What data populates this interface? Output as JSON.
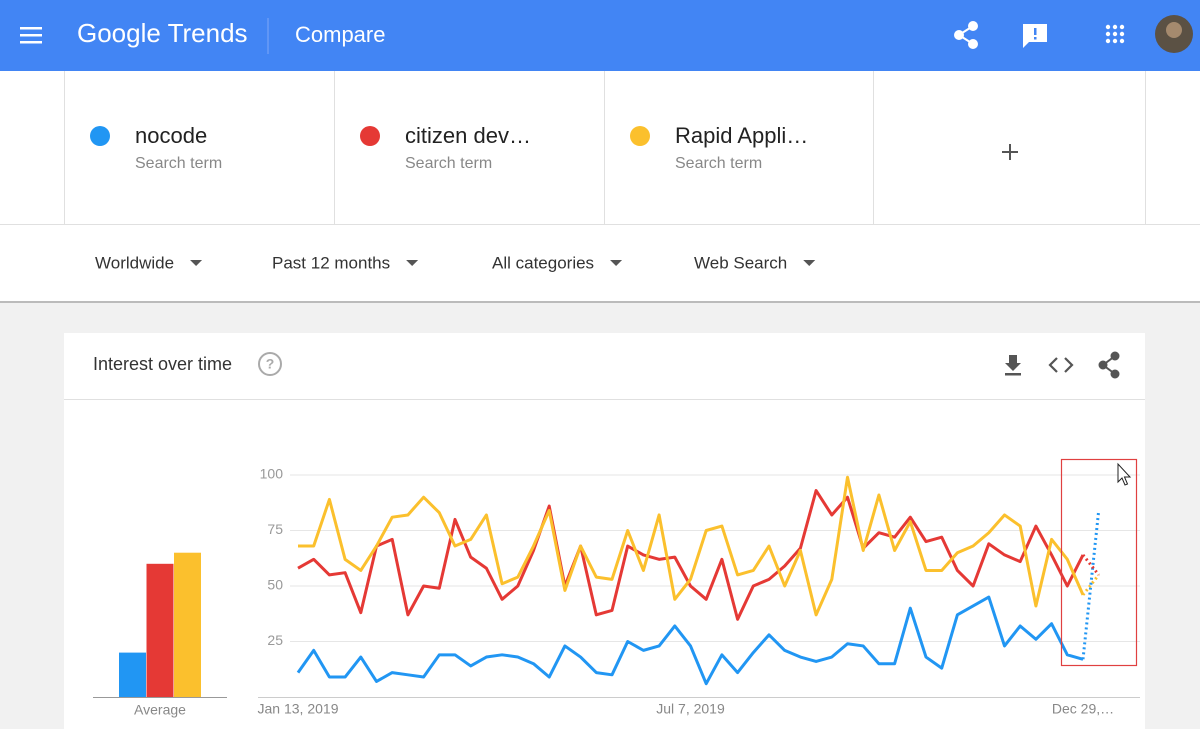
{
  "header": {
    "logo": "Google Trends",
    "page": "Compare"
  },
  "terms": [
    {
      "label": "Search term"
    },
    {
      "label": "Search term"
    },
    {
      "label": "Search term"
    }
  ],
  "filters": [
    "Worldwide",
    "Past 12 months",
    "All categories",
    "Web Search"
  ],
  "card": {
    "title": "Interest over time"
  },
  "chart_data": [
    {
      "type": "bar",
      "categories": [
        "Average"
      ],
      "ylim": [
        0,
        100
      ],
      "series": [
        {
          "color": "#2196f3",
          "values": [
            20
          ]
        },
        {
          "color": "#e53935",
          "values": [
            60
          ]
        },
        {
          "color": "#fbc02d",
          "values": [
            65
          ]
        }
      ]
    },
    {
      "type": "line",
      "categories": [
        "Jan 13, 2019",
        null,
        null,
        null,
        null,
        null,
        null,
        null,
        null,
        null,
        null,
        null,
        null,
        null,
        null,
        null,
        null,
        null,
        null,
        null,
        null,
        null,
        null,
        null,
        null,
        "Jul 7, 2019",
        null,
        null,
        null,
        null,
        null,
        null,
        null,
        null,
        null,
        null,
        null,
        null,
        null,
        null,
        null,
        null,
        null,
        null,
        null,
        null,
        null,
        null,
        null,
        null,
        "Dec 29,…",
        null
      ],
      "series": [
        {
          "name": "nocode",
          "color": "#2196f3",
          "values": [
            11,
            21,
            9,
            9,
            18,
            7,
            11,
            10,
            9,
            19,
            19,
            14,
            18,
            19,
            18,
            15,
            9,
            23,
            18,
            11,
            10,
            25,
            21,
            23,
            32,
            23,
            6,
            19,
            11,
            20,
            28,
            21,
            18,
            16,
            18,
            24,
            23,
            15,
            15,
            40,
            18,
            13,
            37,
            41,
            45,
            23,
            32,
            26,
            33,
            19,
            17,
            84
          ]
        },
        {
          "name": "citizen dev…",
          "color": "#e53935",
          "values": [
            58,
            62,
            55,
            56,
            38,
            68,
            71,
            37,
            50,
            49,
            80,
            63,
            58,
            44,
            50,
            66,
            86,
            50,
            68,
            37,
            39,
            68,
            64,
            62,
            63,
            50,
            44,
            62,
            35,
            50,
            53,
            59,
            67,
            93,
            82,
            90,
            67,
            74,
            72,
            81,
            70,
            72,
            57,
            50,
            69,
            64,
            61,
            77,
            64,
            50,
            64,
            55
          ]
        },
        {
          "name": "Rapid Appli…",
          "color": "#fbc02d",
          "values": [
            68,
            68,
            89,
            62,
            57,
            68,
            81,
            82,
            90,
            83,
            68,
            71,
            82,
            51,
            54,
            68,
            84,
            48,
            68,
            54,
            53,
            75,
            57,
            82,
            44,
            53,
            75,
            77,
            55,
            57,
            68,
            50,
            66,
            37,
            53,
            99,
            66,
            91,
            66,
            79,
            57,
            57,
            65,
            68,
            74,
            82,
            77,
            41,
            71,
            62,
            46,
            55
          ]
        }
      ],
      "ylim": [
        0,
        100
      ],
      "yticks": [
        25,
        50,
        75,
        100
      ],
      "grid": true,
      "last_segment_dashed": true
    }
  ]
}
